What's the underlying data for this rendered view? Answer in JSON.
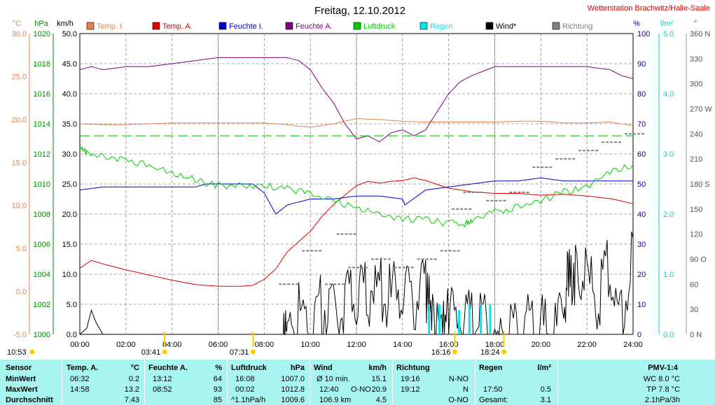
{
  "header": {
    "title": "Freitag, 12.10.2012",
    "station": "Wetterstation Brachwitz/Halle-Saale"
  },
  "colors": {
    "temp_i": "#e8804a",
    "temp_a": "#dd0000",
    "feuchte_i": "#0000cc",
    "feuchte_a": "#800080",
    "luftdruck": "#00cc00",
    "regen": "#00e5ee",
    "wind": "#000000",
    "richtung": "#808080",
    "axis_c": "#e8804a",
    "axis_hpa": "#008800",
    "axis_pct": "#0000aa",
    "axis_lm2": "#00cccc",
    "station": "#dd0000",
    "table_bg": "#a8f4f0"
  },
  "chart_data": {
    "type": "line",
    "title": "Freitag, 12.10.2012",
    "legend": [
      {
        "key": "temp_i",
        "label": "Temp. I."
      },
      {
        "key": "temp_a",
        "label": "Temp. A."
      },
      {
        "key": "feuchte_i",
        "label": "Feuchte I."
      },
      {
        "key": "feuchte_a",
        "label": "Feuchte A."
      },
      {
        "key": "luftdruck",
        "label": "Luftdruck"
      },
      {
        "key": "regen",
        "label": "Regen"
      },
      {
        "key": "wind",
        "label": "Wind*"
      },
      {
        "key": "richtung",
        "label": "Richtung"
      }
    ],
    "legend_position": "top",
    "grid": true,
    "x_range": [
      0,
      24
    ],
    "x_ticks": [
      "00:00",
      "02:00",
      "04:00",
      "06:00",
      "08:00",
      "10:00",
      "12:00",
      "14:00",
      "16:00",
      "18:00",
      "20:00",
      "22:00",
      "24:00"
    ],
    "axes": {
      "celsius": {
        "unit": "°C",
        "range": [
          -5,
          30
        ],
        "ticks": [
          "-5.0",
          "0.0",
          "5.0",
          "10.0",
          "15.0",
          "20.0",
          "25.0",
          "30.0"
        ]
      },
      "hpa": {
        "unit": "hPa",
        "range": [
          1000,
          1020
        ],
        "ticks": [
          "1000",
          "1002",
          "1004",
          "1006",
          "1008",
          "1010",
          "1012",
          "1014",
          "1016",
          "1018",
          "1020"
        ]
      },
      "kmh": {
        "unit": "km/h",
        "range": [
          0,
          50
        ],
        "ticks": [
          "0.0",
          "5.0",
          "10.0",
          "15.0",
          "20.0",
          "25.0",
          "30.0",
          "35.0",
          "40.0",
          "45.0",
          "50.0"
        ]
      },
      "percent": {
        "unit": "%",
        "range": [
          0,
          100
        ],
        "ticks": [
          "0",
          "10",
          "20",
          "30",
          "40",
          "50",
          "60",
          "70",
          "80",
          "90",
          "100"
        ]
      },
      "lm2": {
        "unit": "l/m²",
        "range": [
          0,
          5
        ],
        "ticks": [
          "0.0",
          "1.0",
          "2.0",
          "3.0",
          "4.0",
          "5.0"
        ]
      },
      "degrees": {
        "unit": "°",
        "range": [
          0,
          360
        ],
        "ticks": [
          "0 N",
          "30",
          "60",
          "90 O",
          "120",
          "150",
          "180 S",
          "210",
          "240",
          "270 W",
          "300",
          "330",
          "360 N"
        ]
      }
    },
    "series": [
      {
        "key": "temp_i",
        "name": "Temp. I.",
        "axis": "celsius",
        "x": [
          0,
          1,
          2,
          3,
          4,
          5,
          6,
          7,
          8,
          9,
          10,
          11,
          12,
          13,
          14,
          15,
          16,
          17,
          18,
          19,
          20,
          21,
          22,
          23,
          24
        ],
        "y": [
          19.5,
          19.4,
          19.4,
          19.5,
          19.6,
          19.6,
          19.6,
          19.6,
          19.6,
          19.4,
          19.1,
          19.5,
          20.1,
          20.0,
          19.8,
          19.7,
          19.7,
          19.7,
          19.7,
          19.8,
          19.8,
          19.6,
          19.6,
          19.7,
          19.3
        ]
      },
      {
        "key": "temp_a",
        "name": "Temp. A.",
        "axis": "celsius",
        "x": [
          0,
          0.5,
          1,
          2,
          3,
          4,
          5,
          6,
          7,
          7.5,
          8,
          8.5,
          9,
          10,
          10.5,
          11,
          11.5,
          12,
          12.5,
          13,
          13.5,
          14,
          14.5,
          15,
          16,
          17,
          18,
          19,
          20,
          21,
          22,
          23,
          24
        ],
        "y": [
          2.7,
          3.6,
          3.2,
          2.5,
          1.9,
          1.3,
          0.8,
          0.6,
          0.6,
          0.7,
          1.4,
          2.6,
          4.6,
          7.0,
          8.7,
          10.1,
          11.2,
          12.3,
          12.8,
          12.6,
          12.8,
          12.9,
          13.2,
          12.9,
          12.0,
          11.6,
          11.4,
          11.4,
          11.2,
          11.3,
          11.1,
          10.8,
          10.2
        ]
      },
      {
        "key": "feuchte_i",
        "name": "Feuchte I.",
        "axis": "percent",
        "x": [
          0,
          1,
          2,
          3,
          4,
          5,
          5.5,
          6,
          7,
          7.5,
          8,
          8.5,
          9,
          10,
          11,
          12,
          13,
          14,
          14.1,
          15,
          16,
          17,
          18,
          19,
          20,
          21,
          22,
          23,
          24
        ],
        "y": [
          48,
          49,
          49,
          49,
          49,
          49,
          50,
          50,
          50,
          50,
          47,
          40,
          43,
          45,
          45,
          46,
          46,
          45,
          43,
          48,
          49,
          50,
          51,
          51,
          52,
          51,
          51,
          51,
          51
        ]
      },
      {
        "key": "feuchte_a",
        "name": "Feuchte A.",
        "axis": "percent",
        "x": [
          0,
          0.5,
          1,
          2,
          3,
          4,
          5,
          6,
          7,
          8,
          9,
          9.5,
          10,
          10.5,
          11,
          11.5,
          12,
          12.5,
          13,
          13.5,
          14,
          14.5,
          15,
          15.5,
          16,
          16.5,
          17,
          18,
          19,
          20,
          21,
          22,
          23,
          23.5,
          24
        ],
        "y": [
          88,
          89,
          88,
          89,
          89,
          90,
          91,
          92,
          92,
          92,
          92,
          91,
          88,
          82,
          77,
          70,
          65,
          66,
          64,
          67,
          68,
          66,
          68,
          74,
          80,
          84,
          86,
          89,
          89,
          89,
          89,
          89,
          88,
          86,
          85
        ]
      },
      {
        "key": "luftdruck",
        "name": "Luftdruck",
        "axis": "hpa",
        "x": [
          0,
          0.3,
          1,
          2,
          3,
          4,
          5,
          6,
          7,
          8,
          9,
          10,
          11,
          12,
          13,
          14,
          15,
          16,
          16.7,
          17,
          18,
          19,
          20,
          21,
          22,
          23,
          24
        ],
        "y": [
          1012.5,
          1012.2,
          1012.0,
          1011.8,
          1011.3,
          1010.8,
          1010.4,
          1010.0,
          1010.0,
          1010.0,
          1009.8,
          1009.5,
          1009.0,
          1008.5,
          1008.2,
          1007.8,
          1007.8,
          1007.5,
          1007.5,
          1007.7,
          1008.3,
          1008.6,
          1009.0,
          1009.6,
          1010.0,
          1010.9,
          1011.3
        ]
      },
      {
        "key": "wind",
        "name": "Wind*",
        "axis": "kmh",
        "x": [
          0,
          0.3,
          0.5,
          0.7,
          1,
          2,
          3,
          4,
          5,
          6,
          7,
          8,
          8.8,
          9,
          9.5,
          10,
          10.5,
          11,
          11.5,
          12,
          12.5,
          13,
          13.5,
          14,
          14.5,
          15,
          15.3,
          15.7,
          16,
          16.5,
          17,
          17.5,
          18,
          18.5,
          19,
          19.5,
          20,
          20.5,
          21,
          21.2,
          21.5,
          22,
          22.5,
          23,
          23.5,
          24
        ],
        "y": [
          0,
          1,
          4,
          2,
          0,
          0,
          0,
          0,
          0,
          0,
          0,
          0,
          0,
          5,
          7,
          6,
          8,
          7,
          9,
          10,
          10,
          11,
          9,
          12,
          9,
          10,
          7,
          5,
          6,
          6,
          4,
          5,
          2,
          1,
          5,
          4,
          4,
          2,
          6,
          14,
          13,
          12,
          9,
          14,
          5,
          16
        ]
      },
      {
        "key": "richtung",
        "name": "Richtung",
        "axis": "degrees",
        "x": [
          9,
          10,
          11,
          11.5,
          12,
          13,
          14,
          15,
          16,
          16.5,
          17,
          18,
          19,
          20,
          21,
          22,
          23,
          24
        ],
        "y": [
          60,
          100,
          60,
          120,
          80,
          90,
          80,
          90,
          100,
          150,
          170,
          160,
          170,
          200,
          210,
          220,
          230,
          240
        ]
      },
      {
        "key": "regen",
        "name": "Regen",
        "axis": "lm2",
        "bars": [
          {
            "x": 15.15,
            "y": 0.5
          },
          {
            "x": 15.6,
            "y": 0.5
          },
          {
            "x": 16.45,
            "y": 0.4
          },
          {
            "x": 16.9,
            "y": 0.5
          },
          {
            "x": 17.4,
            "y": 0.5
          },
          {
            "x": 17.8,
            "y": 0.5
          }
        ]
      },
      {
        "key": "luftdruck_ref",
        "axis": "hpa",
        "dashed": true,
        "x": [
          0,
          24
        ],
        "y": [
          1013.2,
          1013.2
        ]
      }
    ],
    "markers": [
      {
        "label": "10:53",
        "x": 0,
        "sun": true,
        "show_time": false
      },
      {
        "label": "03:41",
        "x": 3.683
      },
      {
        "label": "07:31",
        "x": 7.517
      },
      {
        "label": "16:16",
        "x": 16.267
      },
      {
        "label": "18:24",
        "x": 18.4
      }
    ]
  },
  "stats": {
    "sensor": {
      "header": "Sensor",
      "rows": [
        "MinWert",
        "MaxWert",
        "Durchschnitt"
      ]
    },
    "temp_a": {
      "header": "Temp. A.",
      "unit": "°C",
      "rows": [
        [
          "06:32",
          "0.2"
        ],
        [
          "14:58",
          "13.2"
        ],
        [
          "",
          "7.43"
        ]
      ]
    },
    "feuchte_a": {
      "header": "Feuchte A.",
      "unit": "%",
      "rows": [
        [
          "13:12",
          "64"
        ],
        [
          "08:52",
          "93"
        ],
        [
          "",
          "85"
        ]
      ]
    },
    "luftdruck": {
      "header": "Luftdruck",
      "unit": "hPa",
      "rows": [
        [
          "16:08",
          "1007.0"
        ],
        [
          "00:02",
          "1012.8"
        ],
        [
          "^1.1hPa/h",
          "1009.6"
        ]
      ]
    },
    "wind": {
      "header": "Wind",
      "unit": "km/h",
      "rows": [
        [
          "Ø 10 min.",
          "",
          "15.1"
        ],
        [
          "12:40",
          "O-NO",
          "20.9"
        ],
        [
          "106.9 km",
          "",
          "4.5"
        ]
      ]
    },
    "richtung": {
      "header": "Richtung",
      "rows": [
        [
          "19:16",
          "N-NO"
        ],
        [
          "19:12",
          "N"
        ],
        [
          "",
          "O-NO"
        ]
      ]
    },
    "regen": {
      "header": "Regen",
      "unit": "l/m²",
      "rows": [
        [
          "",
          ""
        ],
        [
          "17:50",
          "0.5"
        ],
        [
          "Gesamt:",
          "3.1"
        ]
      ]
    },
    "pmv": {
      "header": "PMV-1:4",
      "rows": [
        "WC 8.0 °C",
        "TP 7.8 °C",
        "2.1hPa/3h"
      ]
    }
  }
}
